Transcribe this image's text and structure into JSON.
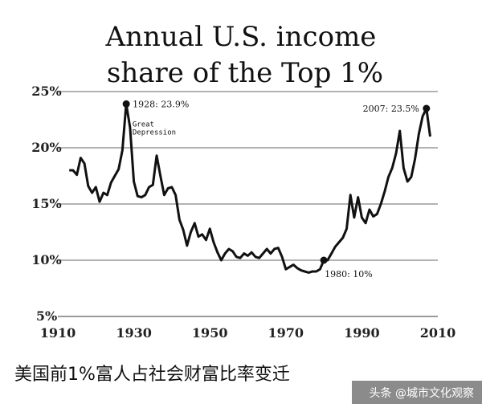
{
  "chart_data": {
    "type": "line",
    "title": [
      "Annual U.S. income",
      "share of the Top 1%"
    ],
    "xlim": [
      1910,
      2010
    ],
    "ylim": [
      5,
      25
    ],
    "x_ticks": [
      "1910",
      "1930",
      "1950",
      "1970",
      "1990",
      "2010"
    ],
    "y_ticks": [
      "5%",
      "10%",
      "15%",
      "20%",
      "25%"
    ],
    "grid": "horizontal",
    "series": [
      {
        "points": [
          [
            1913,
            18.0
          ],
          [
            1914,
            18.0
          ],
          [
            1915,
            17.6
          ],
          [
            1916,
            19.1
          ],
          [
            1917,
            18.6
          ],
          [
            1918,
            16.6
          ],
          [
            1919,
            16.0
          ],
          [
            1920,
            16.5
          ],
          [
            1921,
            15.2
          ],
          [
            1922,
            16.0
          ],
          [
            1923,
            15.8
          ],
          [
            1924,
            16.9
          ],
          [
            1925,
            17.5
          ],
          [
            1926,
            18.1
          ],
          [
            1927,
            19.8
          ],
          [
            1928,
            23.9
          ],
          [
            1929,
            21.8
          ],
          [
            1930,
            17.0
          ],
          [
            1931,
            15.7
          ],
          [
            1932,
            15.6
          ],
          [
            1933,
            15.8
          ],
          [
            1934,
            16.5
          ],
          [
            1935,
            16.7
          ],
          [
            1936,
            19.3
          ],
          [
            1937,
            17.5
          ],
          [
            1938,
            15.8
          ],
          [
            1939,
            16.4
          ],
          [
            1940,
            16.5
          ],
          [
            1941,
            15.8
          ],
          [
            1942,
            13.6
          ],
          [
            1943,
            12.7
          ],
          [
            1944,
            11.3
          ],
          [
            1945,
            12.5
          ],
          [
            1946,
            13.3
          ],
          [
            1947,
            12.1
          ],
          [
            1948,
            12.3
          ],
          [
            1949,
            11.8
          ],
          [
            1950,
            12.8
          ],
          [
            1951,
            11.6
          ],
          [
            1952,
            10.7
          ],
          [
            1953,
            10.0
          ],
          [
            1954,
            10.6
          ],
          [
            1955,
            11.0
          ],
          [
            1956,
            10.8
          ],
          [
            1957,
            10.3
          ],
          [
            1958,
            10.2
          ],
          [
            1959,
            10.6
          ],
          [
            1960,
            10.4
          ],
          [
            1961,
            10.7
          ],
          [
            1962,
            10.3
          ],
          [
            1963,
            10.2
          ],
          [
            1964,
            10.6
          ],
          [
            1965,
            11.0
          ],
          [
            1966,
            10.6
          ],
          [
            1967,
            11.0
          ],
          [
            1968,
            11.1
          ],
          [
            1969,
            10.3
          ],
          [
            1970,
            9.2
          ],
          [
            1971,
            9.4
          ],
          [
            1972,
            9.6
          ],
          [
            1973,
            9.3
          ],
          [
            1974,
            9.1
          ],
          [
            1975,
            9.0
          ],
          [
            1976,
            8.9
          ],
          [
            1977,
            9.0
          ],
          [
            1978,
            9.0
          ],
          [
            1979,
            9.2
          ],
          [
            1980,
            10.0
          ],
          [
            1981,
            10.0
          ],
          [
            1982,
            10.6
          ],
          [
            1983,
            11.2
          ],
          [
            1984,
            11.6
          ],
          [
            1985,
            12.0
          ],
          [
            1986,
            12.8
          ],
          [
            1987,
            15.8
          ],
          [
            1988,
            13.8
          ],
          [
            1989,
            15.6
          ],
          [
            1990,
            13.8
          ],
          [
            1991,
            13.3
          ],
          [
            1992,
            14.5
          ],
          [
            1993,
            13.9
          ],
          [
            1994,
            14.1
          ],
          [
            1995,
            15.0
          ],
          [
            1996,
            16.1
          ],
          [
            1997,
            17.4
          ],
          [
            1998,
            18.2
          ],
          [
            1999,
            19.5
          ],
          [
            2000,
            21.5
          ],
          [
            2001,
            18.2
          ],
          [
            2002,
            17.0
          ],
          [
            2003,
            17.4
          ],
          [
            2004,
            19.0
          ],
          [
            2005,
            21.2
          ],
          [
            2006,
            22.8
          ],
          [
            2007,
            23.5
          ],
          [
            2008,
            21.0
          ]
        ]
      }
    ],
    "annotations": [
      {
        "x": 1928,
        "y": 23.9,
        "label": "1928: 23.9%",
        "marker": true
      },
      {
        "x": 2007,
        "y": 23.5,
        "label": "2007: 23.5%",
        "marker": true
      },
      {
        "x": 1980,
        "y": 10.0,
        "label": "1980: 10%",
        "marker": true
      },
      {
        "x": 1929,
        "y": 21.4,
        "label": [
          "Great",
          "Depression"
        ],
        "marker": false
      }
    ]
  },
  "caption": "美国前1%富人占社会财富比率变迁",
  "watermark": "头条 @城市文化观察",
  "colors": {
    "line": "#111111",
    "grid": "#9a9a9a",
    "text": "#111111"
  }
}
